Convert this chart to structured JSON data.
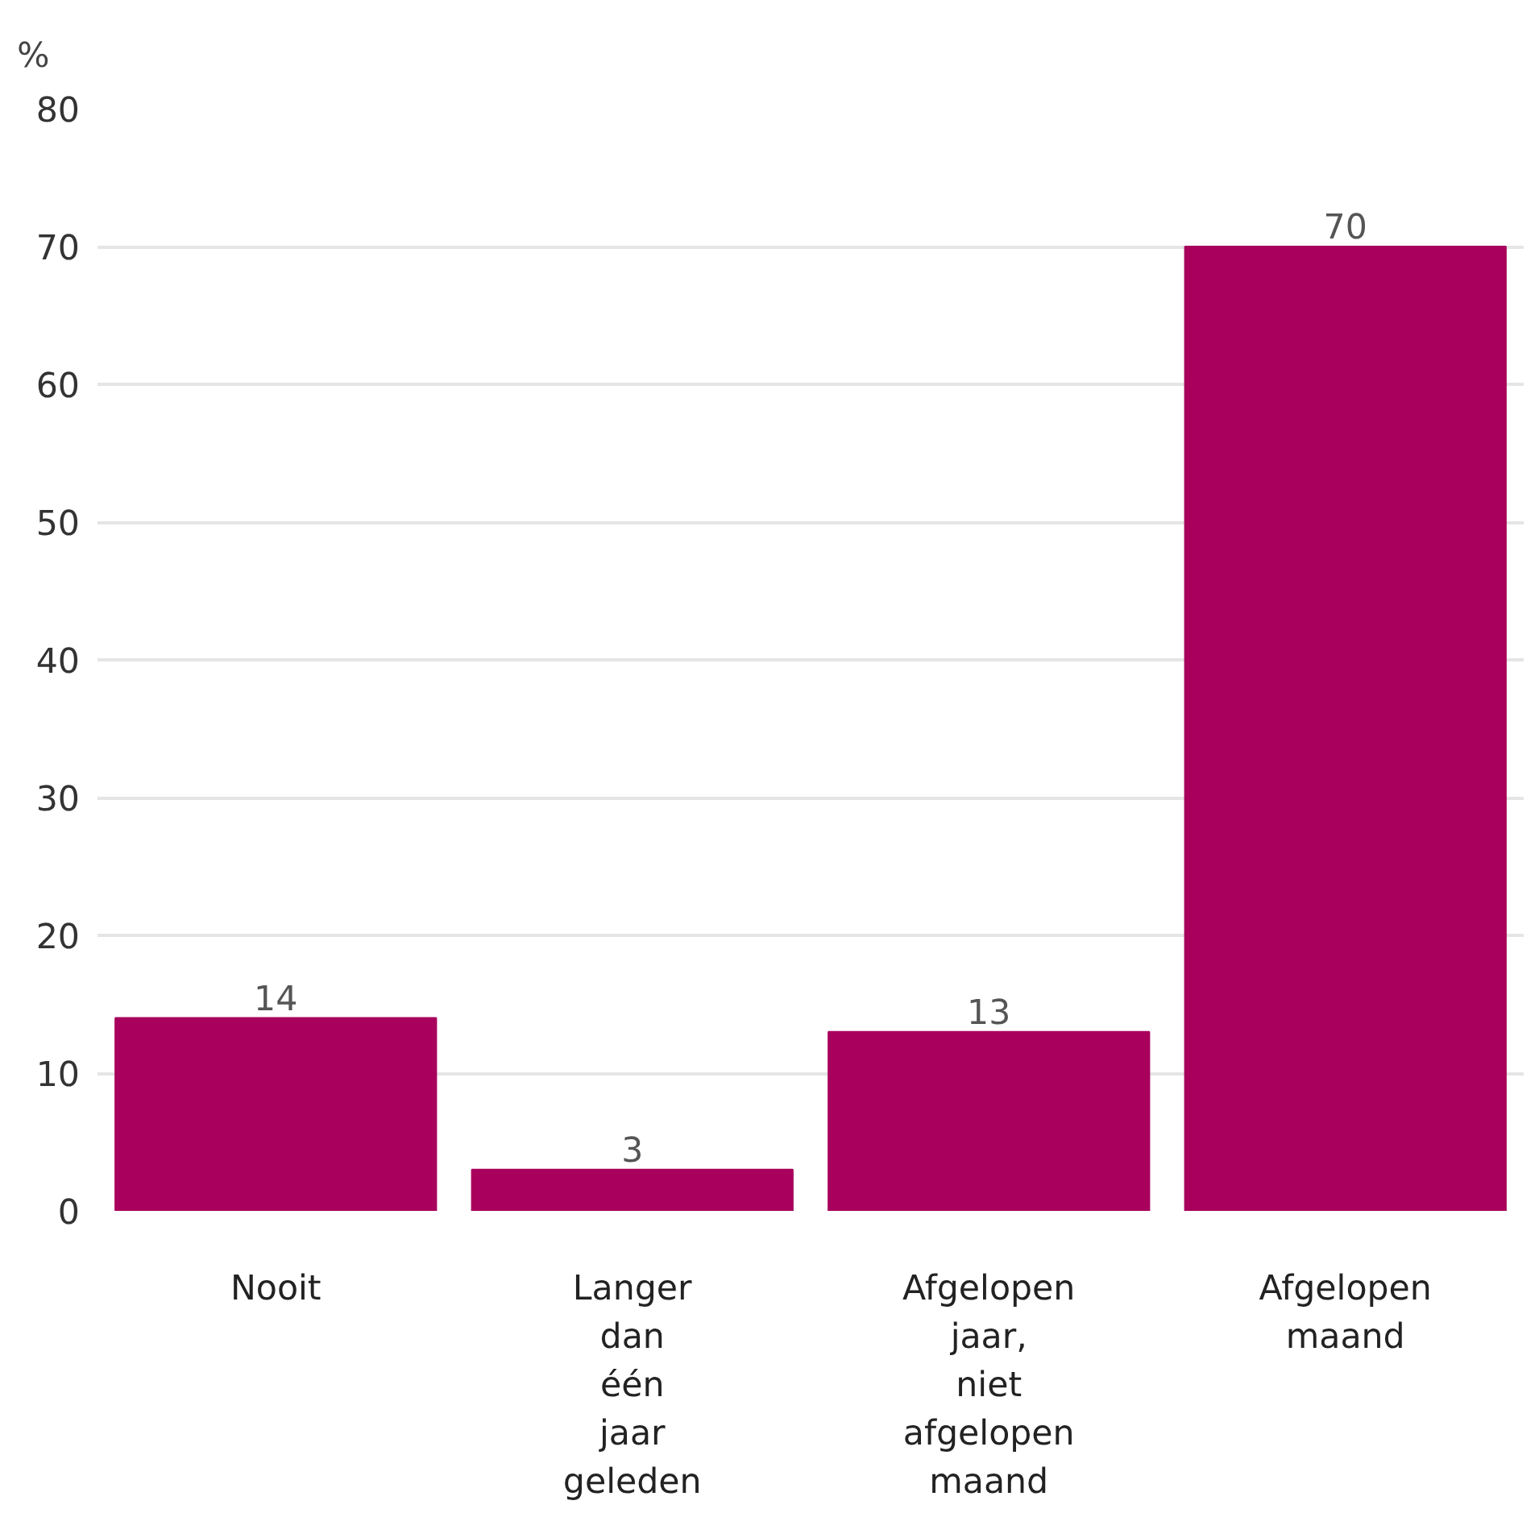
{
  "chart_data": {
    "type": "bar",
    "ylabel": "%",
    "categories": [
      "Nooit",
      "Langer dan één jaar geleden",
      "Afgelopen jaar, niet afgelopen maand",
      "Afgelopen maand"
    ],
    "values": [
      14,
      3,
      13,
      70
    ],
    "color": "#a8005c",
    "ylim": [
      0,
      80
    ],
    "yticks": [
      0,
      10,
      20,
      30,
      40,
      50,
      60,
      70,
      80
    ],
    "grid": "y",
    "data_labels": true
  }
}
